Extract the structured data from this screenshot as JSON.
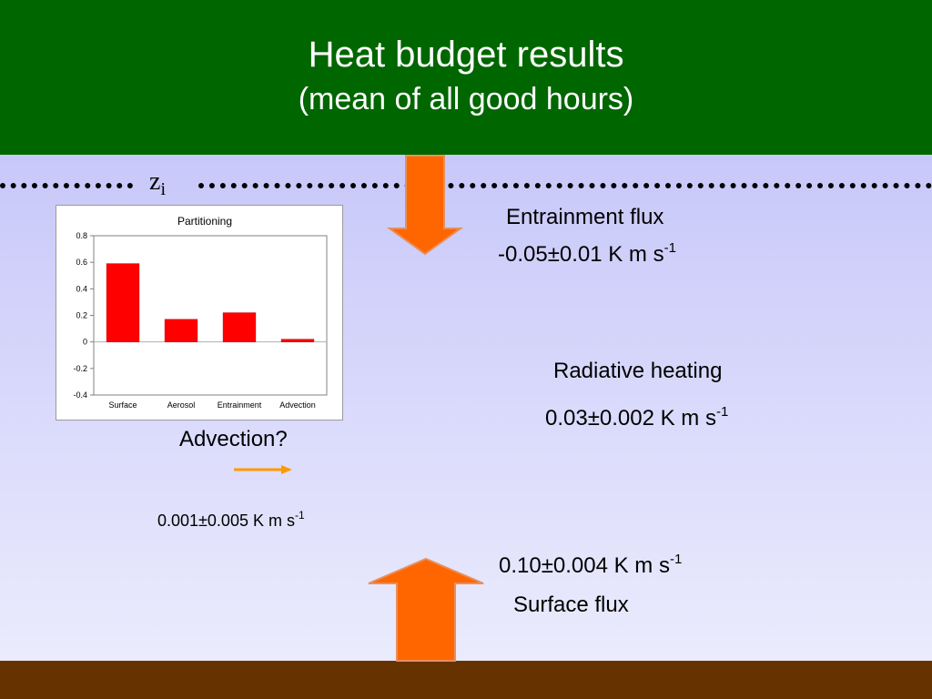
{
  "slide": {
    "title": "Heat budget results",
    "subtitle": "(mean of all good hours)",
    "colors": {
      "title_bg": "#006600",
      "content_bg_top": "#c8c8fa",
      "content_bg_bottom": "#ebebfd",
      "ground": "#663300",
      "arrow": "#ff6600",
      "bars": "#ff0000"
    }
  },
  "inversion": {
    "label_main": "z",
    "label_sub": "i"
  },
  "entrainment": {
    "label": "Entrainment flux",
    "value": "-0.05±0.01 K m s",
    "exponent": "-1"
  },
  "radiative": {
    "label": "Radiative heating",
    "value": "0.03±0.002 K m s",
    "exponent": "-1"
  },
  "advection": {
    "label": "Advection?",
    "value": "0.001±0.005 K m s",
    "exponent": "-1"
  },
  "surface": {
    "label": "Surface flux",
    "value": "0.10±0.004 K m s",
    "exponent": "-1"
  },
  "chart_data": {
    "type": "bar",
    "title": "Partitioning",
    "categories": [
      "Surface",
      "Aerosol",
      "Entrainment",
      "Advection"
    ],
    "values": [
      0.59,
      0.17,
      0.22,
      0.02
    ],
    "ylim": [
      -0.4,
      0.8
    ],
    "yticks": [
      "0.8",
      "0.6",
      "0.4",
      "0.2",
      "0",
      "-0.2",
      "-0.4"
    ],
    "xlabel": "",
    "ylabel": "",
    "grid": false,
    "legend": "none"
  }
}
